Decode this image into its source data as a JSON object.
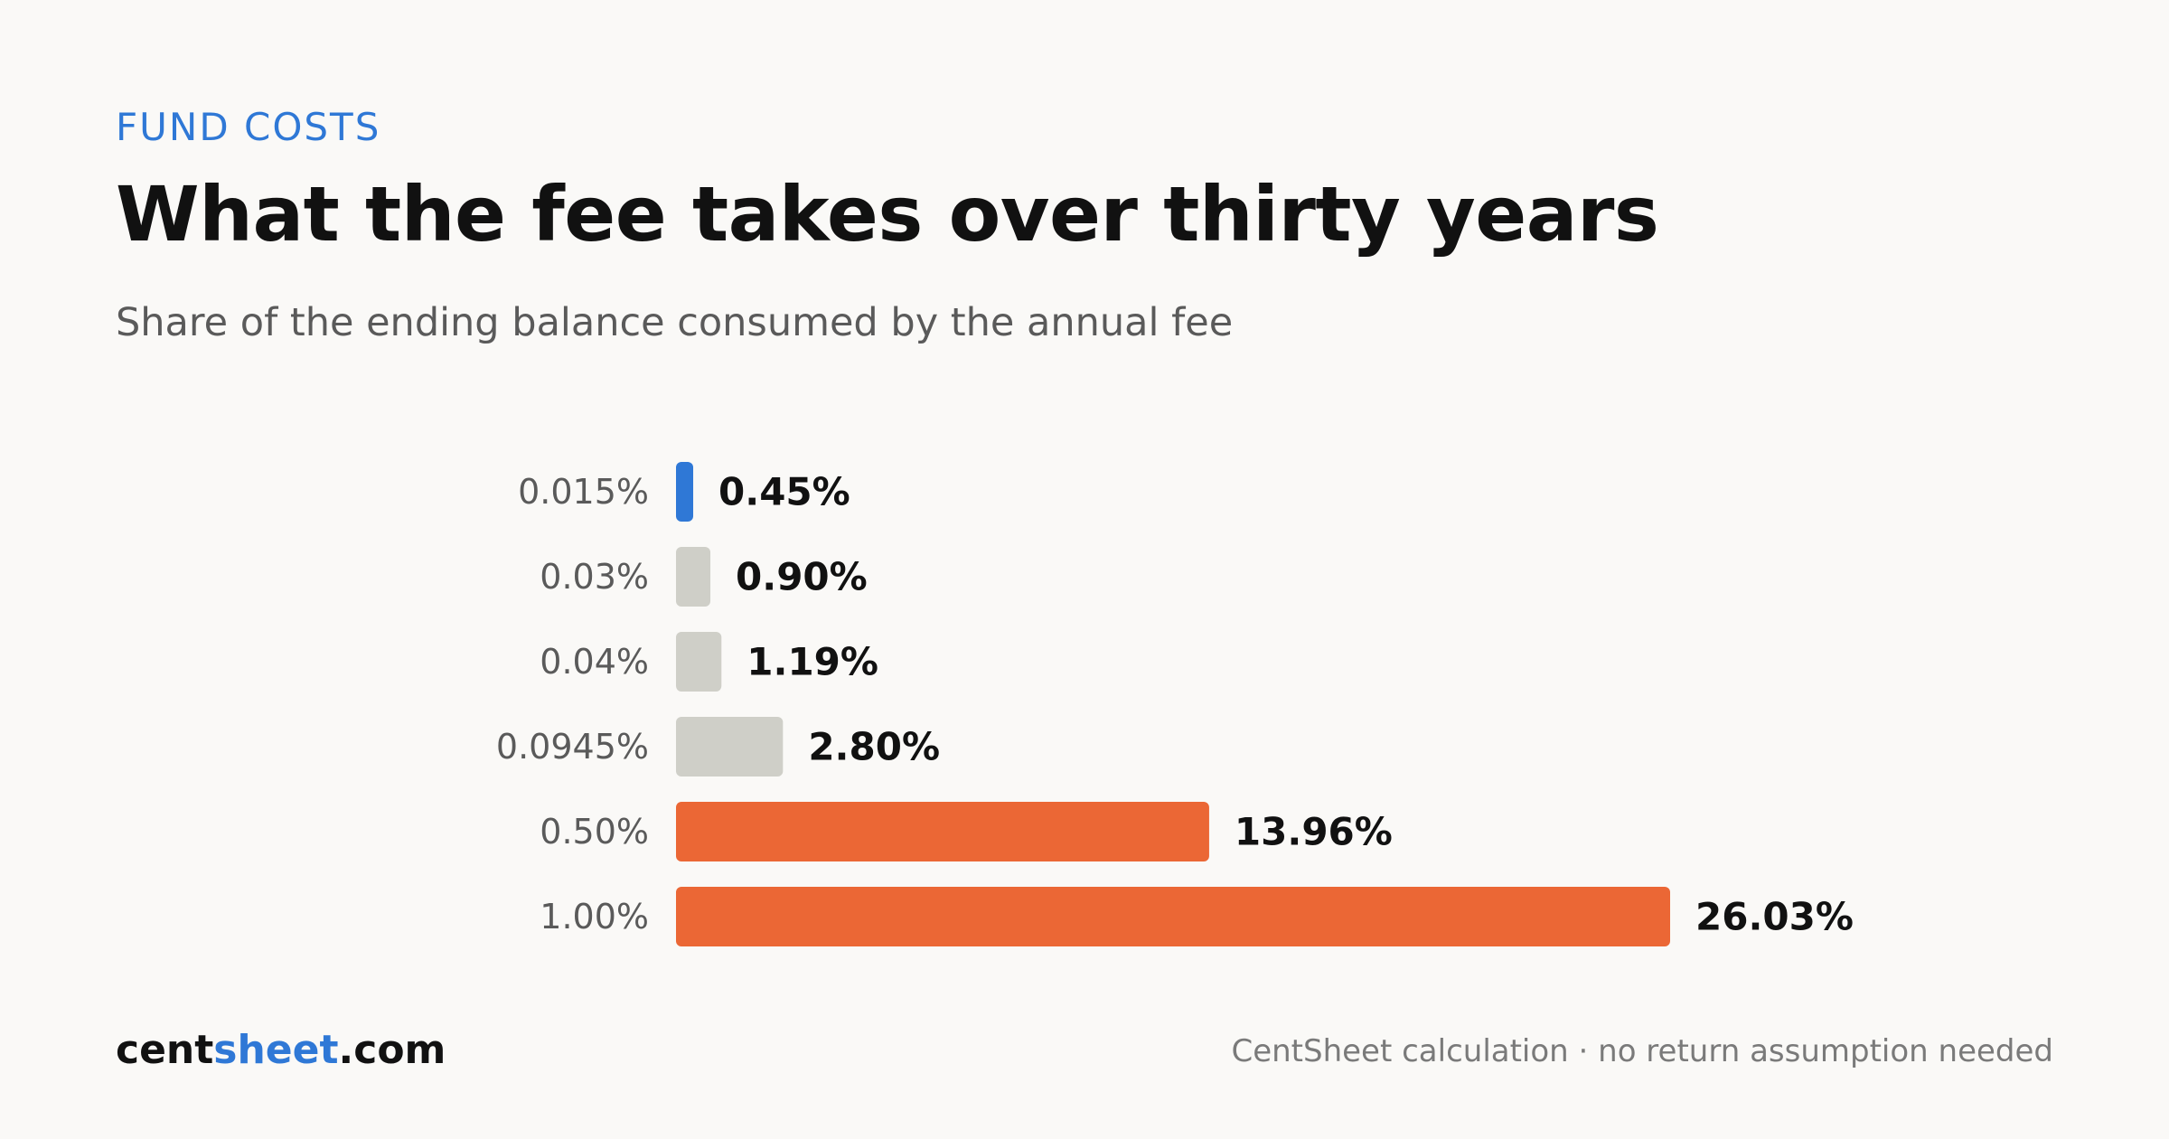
{
  "header": {
    "kicker": "FUND COSTS",
    "title": "What the fee takes over thirty years",
    "subtitle": "Share of the ending balance consumed by the annual fee"
  },
  "chart_data": {
    "type": "bar",
    "orientation": "horizontal",
    "categories": [
      "0.015%",
      "0.03%",
      "0.04%",
      "0.0945%",
      "0.50%",
      "1.00%"
    ],
    "values": [
      0.45,
      0.9,
      1.19,
      2.8,
      13.96,
      26.03
    ],
    "value_labels": [
      "0.45%",
      "0.90%",
      "1.19%",
      "2.80%",
      "13.96%",
      "26.03%"
    ],
    "bar_colors": [
      "#2f78d6",
      "#cfcfc8",
      "#cfcfc8",
      "#cfcfc8",
      "#eb6735",
      "#eb6735"
    ],
    "title": "What the fee takes over thirty years",
    "subtitle": "Share of the ending balance consumed by the annual fee",
    "xlim": [
      0,
      26.03
    ],
    "grid": false,
    "legend": "none"
  },
  "colors": {
    "accent": "#2f78d6",
    "highlight": "#eb6735",
    "muted_bar": "#cfcfc8",
    "text_primary": "#111111",
    "text_secondary": "#5a5a5a"
  },
  "footer": {
    "brand_prefix": "cent",
    "brand_accent": "sheet",
    "brand_suffix": ".com",
    "note": "CentSheet calculation · no return assumption needed"
  }
}
